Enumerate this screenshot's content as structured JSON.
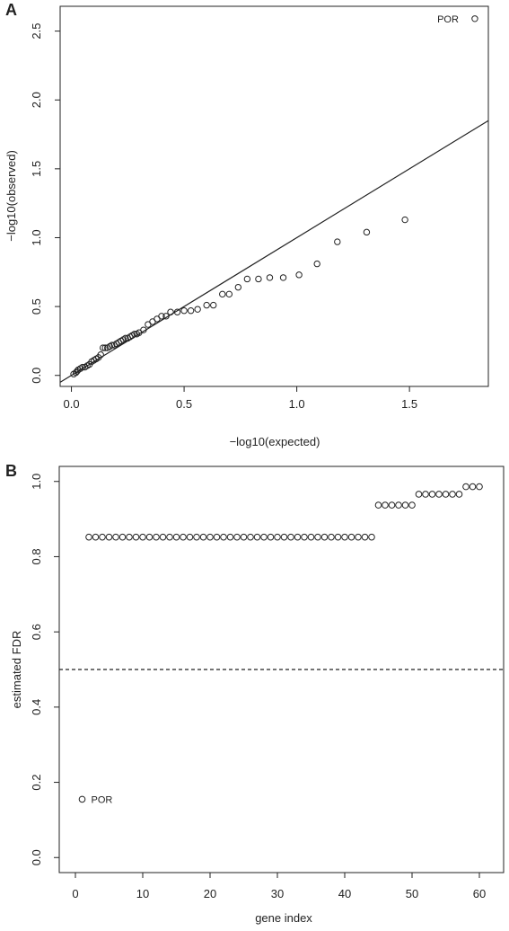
{
  "chart_data": [
    {
      "panel": "A",
      "type": "scatter",
      "xlabel": "−log10(expected)",
      "ylabel": "−log10(observed)",
      "xlim": [
        -0.05,
        1.85
      ],
      "ylim": [
        -0.08,
        2.68
      ],
      "xticks": [
        "0.0",
        "0.5",
        "1.0",
        "1.5"
      ],
      "xtick_values": [
        0,
        0.5,
        1.0,
        1.5
      ],
      "yticks": [
        "0.0",
        "0.5",
        "1.0",
        "1.5",
        "2.0",
        "2.5"
      ],
      "ytick_values": [
        0,
        0.5,
        1.0,
        1.5,
        2.0,
        2.5
      ],
      "reference_line": {
        "intercept": 0,
        "slope": 1
      },
      "annotation": {
        "text": "POR",
        "x": 1.79,
        "y": 2.59
      },
      "points": [
        [
          0.01,
          0.01
        ],
        [
          0.02,
          0.02
        ],
        [
          0.025,
          0.03
        ],
        [
          0.03,
          0.04
        ],
        [
          0.04,
          0.05
        ],
        [
          0.05,
          0.06
        ],
        [
          0.06,
          0.06
        ],
        [
          0.07,
          0.07
        ],
        [
          0.08,
          0.08
        ],
        [
          0.09,
          0.1
        ],
        [
          0.1,
          0.11
        ],
        [
          0.11,
          0.12
        ],
        [
          0.12,
          0.13
        ],
        [
          0.13,
          0.15
        ],
        [
          0.14,
          0.2
        ],
        [
          0.15,
          0.2
        ],
        [
          0.16,
          0.2
        ],
        [
          0.17,
          0.21
        ],
        [
          0.18,
          0.22
        ],
        [
          0.19,
          0.22
        ],
        [
          0.2,
          0.23
        ],
        [
          0.21,
          0.24
        ],
        [
          0.22,
          0.25
        ],
        [
          0.23,
          0.26
        ],
        [
          0.24,
          0.27
        ],
        [
          0.25,
          0.27
        ],
        [
          0.26,
          0.28
        ],
        [
          0.27,
          0.29
        ],
        [
          0.28,
          0.3
        ],
        [
          0.29,
          0.3
        ],
        [
          0.3,
          0.31
        ],
        [
          0.32,
          0.33
        ],
        [
          0.34,
          0.37
        ],
        [
          0.36,
          0.39
        ],
        [
          0.38,
          0.41
        ],
        [
          0.4,
          0.43
        ],
        [
          0.42,
          0.43
        ],
        [
          0.44,
          0.46
        ],
        [
          0.47,
          0.46
        ],
        [
          0.5,
          0.47
        ],
        [
          0.53,
          0.47
        ],
        [
          0.56,
          0.48
        ],
        [
          0.6,
          0.51
        ],
        [
          0.63,
          0.51
        ],
        [
          0.67,
          0.59
        ],
        [
          0.7,
          0.59
        ],
        [
          0.74,
          0.64
        ],
        [
          0.78,
          0.7
        ],
        [
          0.83,
          0.7
        ],
        [
          0.88,
          0.71
        ],
        [
          0.94,
          0.71
        ],
        [
          1.01,
          0.73
        ],
        [
          1.09,
          0.81
        ],
        [
          1.18,
          0.97
        ],
        [
          1.31,
          1.04
        ],
        [
          1.48,
          1.13
        ],
        [
          1.79,
          2.59
        ]
      ]
    },
    {
      "panel": "B",
      "type": "scatter",
      "xlabel": "gene index",
      "ylabel": "estimated FDR",
      "xlim": [
        -2.4,
        63.6
      ],
      "ylim": [
        -0.04,
        1.04
      ],
      "xticks": [
        "0",
        "10",
        "20",
        "30",
        "40",
        "50",
        "60"
      ],
      "xtick_values": [
        0,
        10,
        20,
        30,
        40,
        50,
        60
      ],
      "yticks": [
        "0.0",
        "0.2",
        "0.4",
        "0.6",
        "0.8",
        "1.0"
      ],
      "ytick_values": [
        0,
        0.2,
        0.4,
        0.6,
        0.8,
        1.0
      ],
      "threshold_line": {
        "y": 0.5,
        "style": "dashed"
      },
      "annotation": {
        "text": "POR",
        "x": 1,
        "y": 0.155
      },
      "x": [
        1,
        2,
        3,
        4,
        5,
        6,
        7,
        8,
        9,
        10,
        11,
        12,
        13,
        14,
        15,
        16,
        17,
        18,
        19,
        20,
        21,
        22,
        23,
        24,
        25,
        26,
        27,
        28,
        29,
        30,
        31,
        32,
        33,
        34,
        35,
        36,
        37,
        38,
        39,
        40,
        41,
        42,
        43,
        44,
        45,
        46,
        47,
        48,
        49,
        50,
        51,
        52,
        53,
        54,
        55,
        56,
        57,
        58,
        59,
        60
      ],
      "y": [
        0.155,
        0.852,
        0.852,
        0.852,
        0.852,
        0.852,
        0.852,
        0.852,
        0.852,
        0.852,
        0.852,
        0.852,
        0.852,
        0.852,
        0.852,
        0.852,
        0.852,
        0.852,
        0.852,
        0.852,
        0.852,
        0.852,
        0.852,
        0.852,
        0.852,
        0.852,
        0.852,
        0.852,
        0.852,
        0.852,
        0.852,
        0.852,
        0.852,
        0.852,
        0.852,
        0.852,
        0.852,
        0.852,
        0.852,
        0.852,
        0.852,
        0.852,
        0.852,
        0.852,
        0.937,
        0.937,
        0.937,
        0.937,
        0.937,
        0.937,
        0.966,
        0.966,
        0.966,
        0.966,
        0.966,
        0.966,
        0.966,
        0.986,
        0.986,
        0.986
      ]
    }
  ]
}
